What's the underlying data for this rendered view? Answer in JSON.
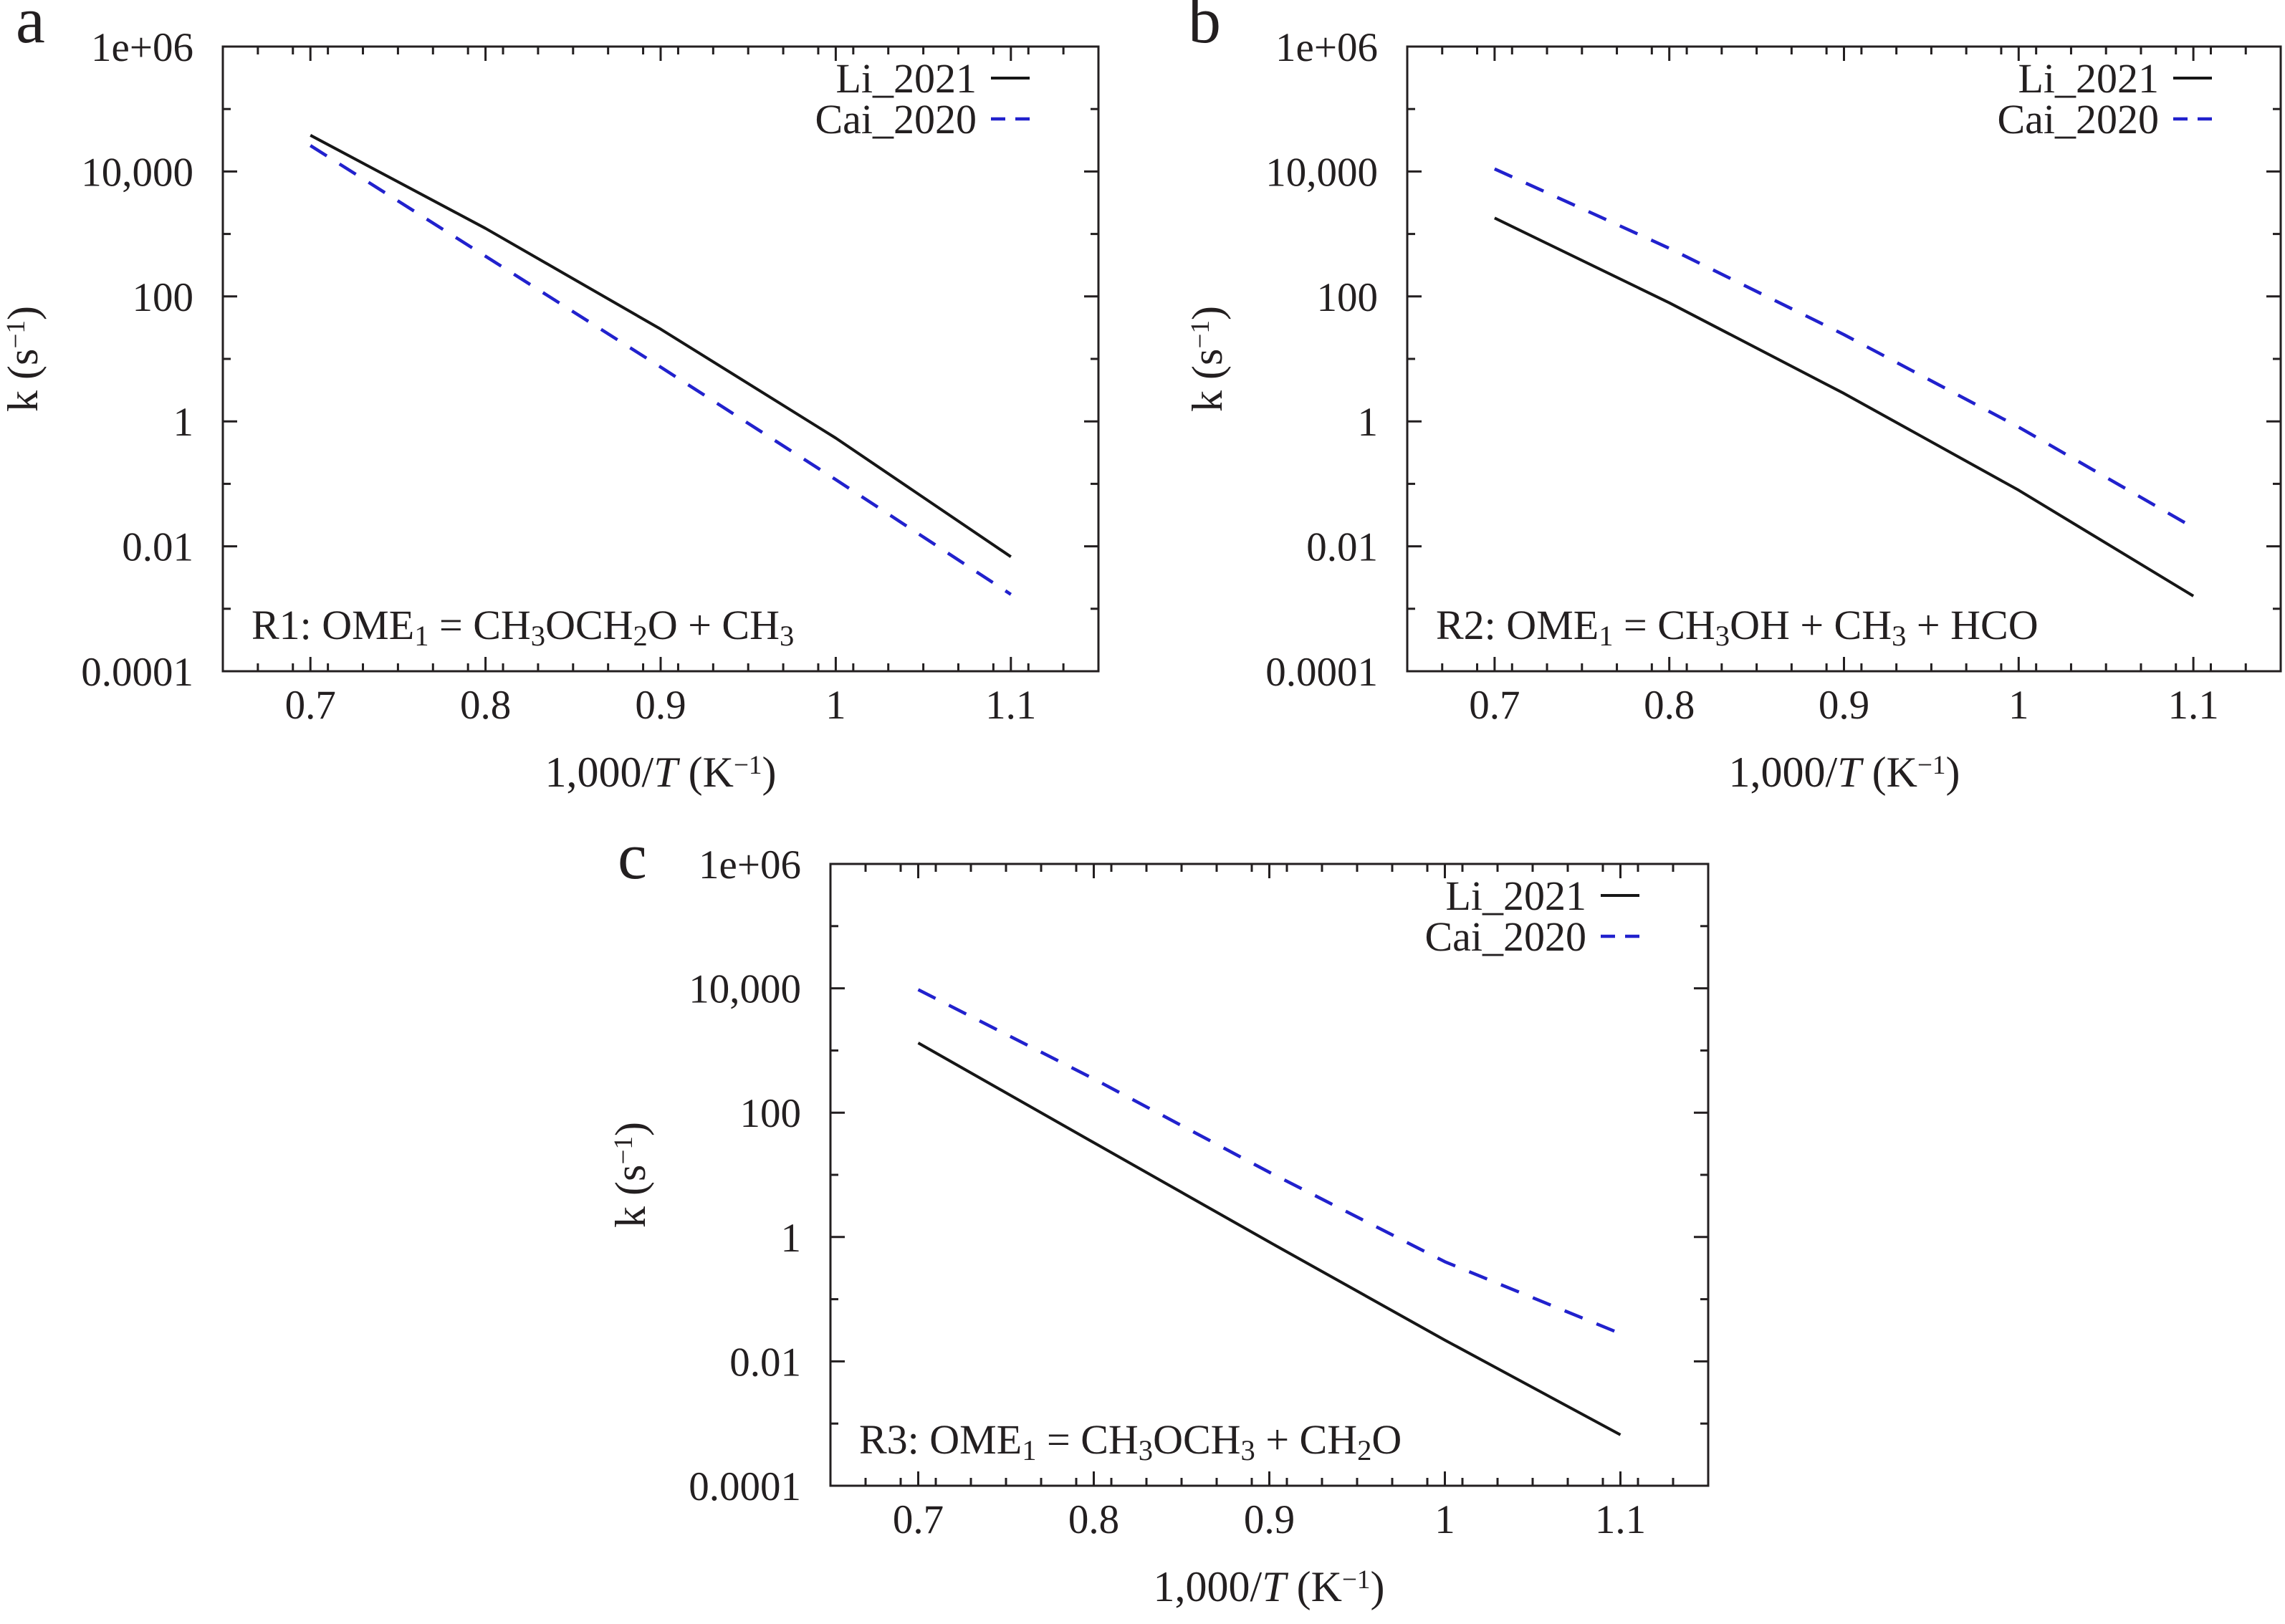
{
  "figure": {
    "background": "#ffffff",
    "text_color": "#231f20",
    "axis_color": "#231f20",
    "li_line_color": "#161616",
    "cai_line_color": "#2121cd"
  },
  "legend": {
    "position": "top-right-inside",
    "entries": [
      {
        "label": "Li_2021",
        "color": "#161616",
        "dash": false
      },
      {
        "label": "Cai_2020",
        "color": "#2121cd",
        "dash": true
      }
    ]
  },
  "axes": {
    "x": {
      "min": 0.65,
      "max": 1.15,
      "major_ticks": [
        0.7,
        0.8,
        0.9,
        1,
        1.1
      ],
      "major_tick_labels": [
        "0.7",
        "0.8",
        "0.9",
        "1",
        "1.1"
      ],
      "minor_step": 0.02,
      "label_text": "1,000/T (K−1)",
      "label_parts": [
        {
          "t": "1,000/"
        },
        {
          "t": "T",
          "style": "italic"
        },
        {
          "t": " (K"
        },
        {
          "t": "−1",
          "style": "sup"
        },
        {
          "t": ")"
        }
      ]
    },
    "y": {
      "scale": "log10",
      "min_exp": -4,
      "max_exp": 6,
      "labeled_exps": [
        6,
        4,
        2,
        0,
        -2,
        -4
      ],
      "labels": [
        "1e+06",
        "10,000",
        "100",
        "1",
        "0.01",
        "0.0001"
      ],
      "label_text": "k (s−1)",
      "label_parts": [
        {
          "t": "k (s"
        },
        {
          "t": "−1",
          "style": "sup"
        },
        {
          "t": ")"
        }
      ]
    }
  },
  "chart_data": [
    {
      "type": "line",
      "panel": "a",
      "xlabel": "1,000/T (K^-1)",
      "ylabel": "k (s^-1)",
      "x_range": [
        0.65,
        1.15
      ],
      "y_range": [
        0.0001,
        1000000
      ],
      "y_scale": "log",
      "grid": false,
      "x": [
        0.7,
        0.8,
        0.9,
        1.0,
        1.1
      ],
      "series": [
        {
          "name": "Li_2021",
          "style": "solid",
          "color": "#161616",
          "k_values": [
            38000,
            1230,
            30,
            0.54,
            0.0068
          ]
        },
        {
          "name": "Cai_2020",
          "style": "dashed",
          "color": "#2121cd",
          "k_values": [
            26000,
            440,
            7.4,
            0.117,
            0.0017
          ]
        }
      ],
      "annotation": "R1: OME1 = CH3OCH2O + CH3",
      "annotation_parts": [
        {
          "t": "R1: OME"
        },
        {
          "t": "1",
          "style": "sub"
        },
        {
          "t": " = CH"
        },
        {
          "t": "3",
          "style": "sub"
        },
        {
          "t": "OCH"
        },
        {
          "t": "2",
          "style": "sub"
        },
        {
          "t": "O + CH"
        },
        {
          "t": "3",
          "style": "sub"
        }
      ]
    },
    {
      "type": "line",
      "panel": "b",
      "xlabel": "1,000/T (K^-1)",
      "ylabel": "k (s^-1)",
      "x_range": [
        0.65,
        1.15
      ],
      "y_range": [
        0.0001,
        1000000
      ],
      "y_scale": "log",
      "grid": false,
      "x": [
        0.7,
        0.8,
        0.9,
        1.0,
        1.1
      ],
      "series": [
        {
          "name": "Li_2021",
          "style": "solid",
          "color": "#161616",
          "k_values": [
            1800,
            79,
            2.8,
            0.079,
            0.0016
          ]
        },
        {
          "name": "Cai_2020",
          "style": "dashed",
          "color": "#2121cd",
          "k_values": [
            11000,
            590,
            24.5,
            0.81,
            0.02
          ]
        }
      ],
      "annotation": "R2: OME1 = CH3OH + CH3 + HCO",
      "annotation_parts": [
        {
          "t": "R2: OME"
        },
        {
          "t": "1",
          "style": "sub"
        },
        {
          "t": " = CH"
        },
        {
          "t": "3",
          "style": "sub"
        },
        {
          "t": "OH + CH"
        },
        {
          "t": "3",
          "style": "sub"
        },
        {
          "t": " + HCO"
        }
      ]
    },
    {
      "type": "line",
      "panel": "c",
      "xlabel": "1,000/T (K^-1)",
      "ylabel": "k (s^-1)",
      "x_range": [
        0.65,
        1.15
      ],
      "y_range": [
        0.0001,
        1000000
      ],
      "y_scale": "log",
      "grid": false,
      "x": [
        0.7,
        0.8,
        0.9,
        1.0,
        1.1
      ],
      "series": [
        {
          "name": "Li_2021",
          "style": "solid",
          "color": "#161616",
          "k_values": [
            1320,
            33,
            0.83,
            0.022,
            0.00066
          ]
        },
        {
          "name": "Cai_2020",
          "style": "dashed",
          "color": "#2121cd",
          "k_values": [
            9500,
            350,
            11,
            0.4,
            0.028
          ]
        }
      ],
      "annotation": "R3: OME1 = CH3OCH3 + CH2O",
      "annotation_parts": [
        {
          "t": "R3: OME"
        },
        {
          "t": "1",
          "style": "sub"
        },
        {
          "t": " = CH"
        },
        {
          "t": "3",
          "style": "sub"
        },
        {
          "t": "OCH"
        },
        {
          "t": "3",
          "style": "sub"
        },
        {
          "t": " + CH"
        },
        {
          "t": "2",
          "style": "sub"
        },
        {
          "t": "O"
        }
      ]
    }
  ]
}
